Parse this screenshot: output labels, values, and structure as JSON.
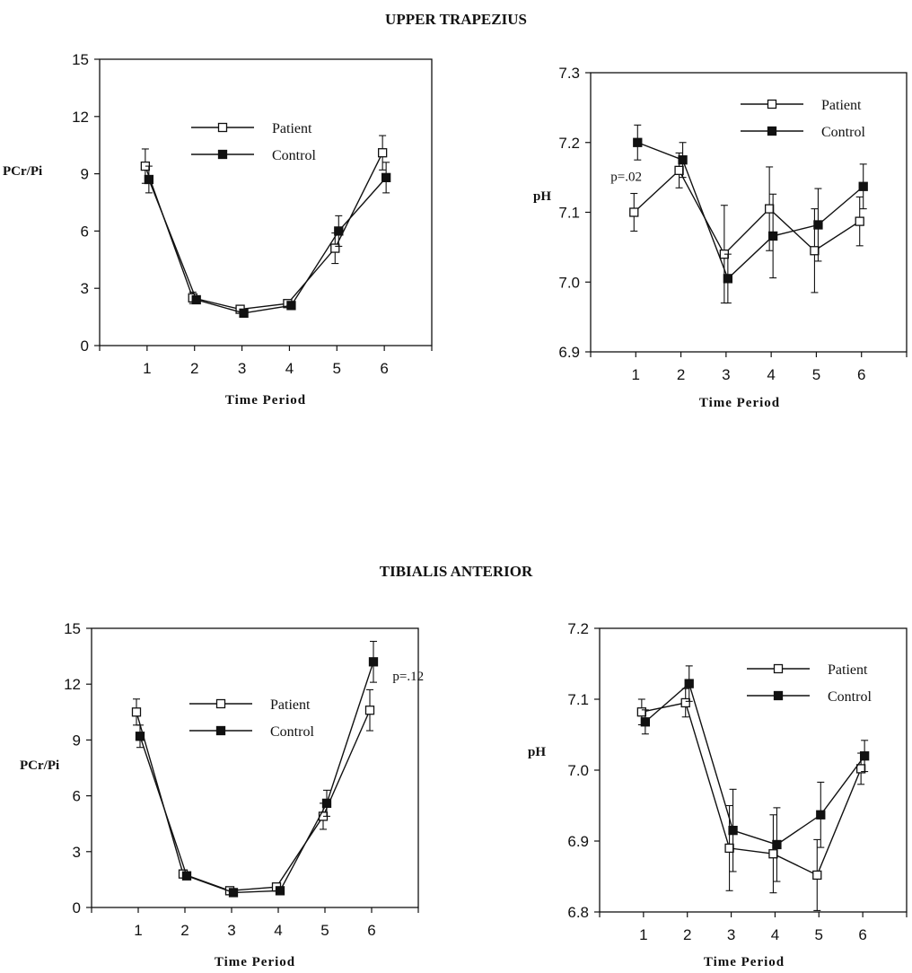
{
  "section_titles": {
    "top": "UPPER TRAPEZIUS",
    "bottom": "TIBIALIS ANTERIOR"
  },
  "colors": {
    "ink": "#111111",
    "open_marker_fill": "#ffffff",
    "filled_marker": "#111111"
  },
  "chart_data": [
    {
      "type": "line",
      "section": "UPPER TRAPEZIUS",
      "title": "",
      "xlabel": "Time Period",
      "ylabel": "PCr/Pi",
      "x": [
        1,
        2,
        3,
        4,
        5,
        6
      ],
      "xlim": [
        0,
        7
      ],
      "xticks": [
        1,
        2,
        3,
        4,
        5,
        6
      ],
      "ylim": [
        0,
        15
      ],
      "yticks": [
        "0",
        "3",
        "6",
        "9",
        "12",
        "15"
      ],
      "grid": false,
      "legend": "upper-center",
      "series": [
        {
          "name": "Patient",
          "marker": "open-square",
          "values": [
            9.4,
            2.5,
            1.9,
            2.2,
            5.1,
            10.1
          ],
          "err": [
            0.9,
            0.3,
            0.2,
            0.2,
            0.8,
            0.9
          ]
        },
        {
          "name": "Control",
          "marker": "filled-square",
          "values": [
            8.7,
            2.4,
            1.7,
            2.1,
            6.0,
            8.8
          ],
          "err": [
            0.7,
            0.2,
            0.2,
            0.2,
            0.8,
            0.8
          ]
        }
      ],
      "annotations": []
    },
    {
      "type": "line",
      "section": "UPPER TRAPEZIUS",
      "title": "",
      "xlabel": "Time Period",
      "ylabel": "pH",
      "x": [
        1,
        2,
        3,
        4,
        5,
        6
      ],
      "xlim": [
        0,
        7
      ],
      "xticks": [
        1,
        2,
        3,
        4,
        5,
        6
      ],
      "ylim": [
        6.9,
        7.3
      ],
      "yticks": [
        "6.9",
        "7.0",
        "7.1",
        "7.2",
        "7.3"
      ],
      "grid": false,
      "legend": "top-right",
      "series": [
        {
          "name": "Patient",
          "marker": "open-square",
          "values": [
            7.1,
            7.16,
            7.04,
            7.105,
            7.045,
            7.087
          ],
          "err": [
            0.027,
            0.025,
            0.07,
            0.06,
            0.06,
            0.035
          ]
        },
        {
          "name": "Control",
          "marker": "filled-square",
          "values": [
            7.2,
            7.175,
            7.005,
            7.066,
            7.082,
            7.137
          ],
          "err": [
            0.025,
            0.025,
            0.035,
            0.06,
            0.052,
            0.032
          ]
        }
      ],
      "annotations": [
        {
          "text": "p=.02",
          "x": 1,
          "y": 7.145
        }
      ]
    },
    {
      "type": "line",
      "section": "TIBIALIS ANTERIOR",
      "title": "",
      "xlabel": "Time Period",
      "ylabel": "PCr/Pi",
      "x": [
        1,
        2,
        3,
        4,
        5,
        6
      ],
      "xlim": [
        0,
        7
      ],
      "xticks": [
        1,
        2,
        3,
        4,
        5,
        6
      ],
      "ylim": [
        0,
        15
      ],
      "yticks": [
        "0",
        "3",
        "6",
        "9",
        "12",
        "15"
      ],
      "grid": false,
      "legend": "upper-center",
      "series": [
        {
          "name": "Patient",
          "marker": "open-square",
          "values": [
            10.5,
            1.8,
            0.9,
            1.1,
            4.9,
            10.6
          ],
          "err": [
            0.7,
            0.2,
            0.2,
            0.2,
            0.7,
            1.1
          ]
        },
        {
          "name": "Control",
          "marker": "filled-square",
          "values": [
            9.2,
            1.7,
            0.8,
            0.9,
            5.6,
            13.2
          ],
          "err": [
            0.6,
            0.2,
            0.1,
            0.2,
            0.7,
            1.1
          ]
        }
      ],
      "annotations": [
        {
          "text": "p=.12",
          "x": 6.45,
          "y": 12.2
        }
      ]
    },
    {
      "type": "line",
      "section": "TIBIALIS ANTERIOR",
      "title": "",
      "xlabel": "Time Period",
      "ylabel": "pH",
      "x": [
        1,
        2,
        3,
        4,
        5,
        6
      ],
      "xlim": [
        0,
        7
      ],
      "xticks": [
        1,
        2,
        3,
        4,
        5,
        6
      ],
      "ylim": [
        6.8,
        7.2
      ],
      "yticks": [
        "6.8",
        "6.9",
        "7.0",
        "7.1",
        "7.2"
      ],
      "grid": false,
      "legend": "top-right",
      "series": [
        {
          "name": "Patient",
          "marker": "open-square",
          "values": [
            7.082,
            7.095,
            6.89,
            6.882,
            6.852,
            7.002
          ],
          "err": [
            0.018,
            0.02,
            0.06,
            0.055,
            0.05,
            0.022
          ]
        },
        {
          "name": "Control",
          "marker": "filled-square",
          "values": [
            7.068,
            7.122,
            6.915,
            6.895,
            6.937,
            7.02
          ],
          "err": [
            0.017,
            0.025,
            0.058,
            0.052,
            0.046,
            0.022
          ]
        }
      ],
      "annotations": []
    }
  ]
}
